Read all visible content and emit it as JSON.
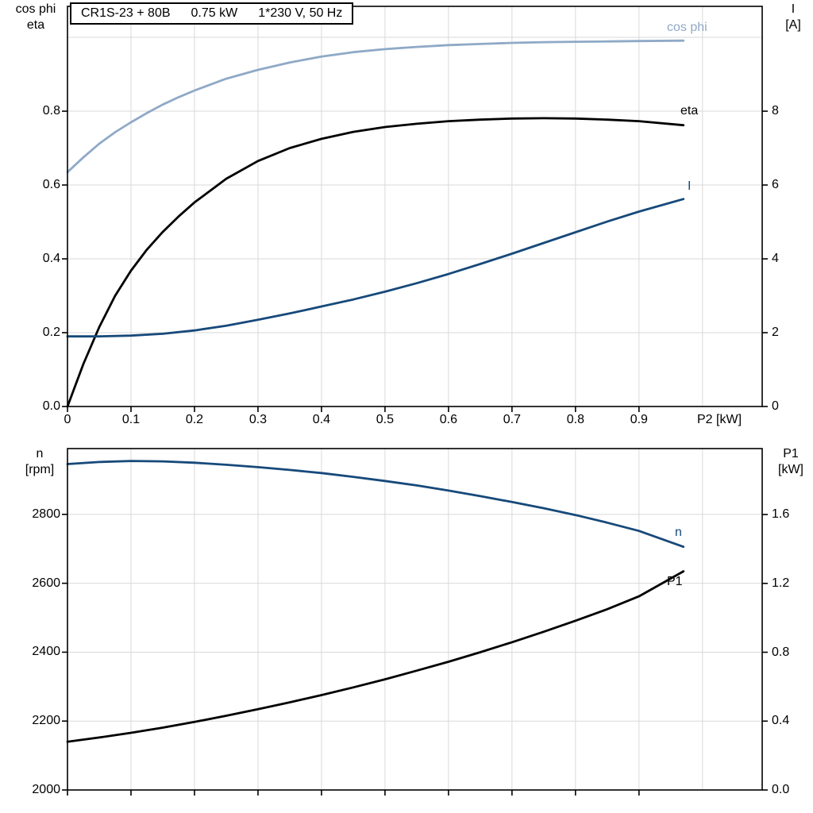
{
  "header": {
    "model": "CR1S-23 + 80B",
    "power": "0.75 kW",
    "supply": "1*230 V, 50 Hz"
  },
  "colors": {
    "light_blue": "#8fa9c7",
    "dark_blue": "#17497a",
    "black": "#000000",
    "grid": "#d9d9d9",
    "frame": "#000000"
  },
  "chart_data": [
    {
      "type": "line",
      "title": "CR1S-23 + 80B 0.75 kW 1*230 V, 50 Hz",
      "xlabel": "P2 [kW]",
      "ylabel_left_lines": [
        "cos phi",
        "eta"
      ],
      "ylabel_right_lines": [
        "I",
        "[A]"
      ],
      "xlim": [
        0,
        1.094
      ],
      "ylim_left": [
        0,
        1.084
      ],
      "ylim_right": [
        0,
        10.84
      ],
      "grid": true,
      "grid_x": [
        0.1,
        0.2,
        0.3,
        0.4,
        0.5,
        0.6,
        0.7,
        0.8,
        0.9,
        1.0
      ],
      "grid_y": [
        0.2,
        0.4,
        0.6,
        0.8,
        1.0
      ],
      "x_ticks": [
        0,
        0.1,
        0.2,
        0.3,
        0.4,
        0.5,
        0.6,
        0.7,
        0.8,
        0.9
      ],
      "x_tick_labels": [
        "0",
        "0.1",
        "0.2",
        "0.3",
        "0.4",
        "0.5",
        "0.6",
        "0.7",
        "0.8",
        "0.9"
      ],
      "y_ticks_left": [
        0,
        0.2,
        0.4,
        0.6,
        0.8
      ],
      "y_tick_labels_left": [
        "0.0",
        "0.2",
        "0.4",
        "0.6",
        "0.8"
      ],
      "y_ticks_right": [
        0,
        2,
        4,
        6,
        8
      ],
      "y_tick_labels_right": [
        "0",
        "2",
        "4",
        "6",
        "8"
      ],
      "series": [
        {
          "id": "cos-phi",
          "name": "cos phi",
          "axis": "left",
          "color": "light_blue",
          "x": [
            0,
            0.025,
            0.05,
            0.075,
            0.1,
            0.125,
            0.15,
            0.175,
            0.2,
            0.25,
            0.3,
            0.35,
            0.4,
            0.45,
            0.5,
            0.55,
            0.6,
            0.65,
            0.7,
            0.75,
            0.8,
            0.85,
            0.9,
            0.97
          ],
          "y": [
            0.635,
            0.675,
            0.712,
            0.743,
            0.77,
            0.795,
            0.818,
            0.838,
            0.856,
            0.888,
            0.912,
            0.932,
            0.948,
            0.96,
            0.968,
            0.974,
            0.979,
            0.982,
            0.985,
            0.987,
            0.988,
            0.989,
            0.99,
            0.991
          ]
        },
        {
          "id": "eta",
          "name": "eta",
          "axis": "left",
          "color": "black",
          "x": [
            0,
            0.025,
            0.05,
            0.075,
            0.1,
            0.125,
            0.15,
            0.175,
            0.2,
            0.25,
            0.3,
            0.35,
            0.4,
            0.45,
            0.5,
            0.55,
            0.6,
            0.65,
            0.7,
            0.75,
            0.8,
            0.85,
            0.9,
            0.97
          ],
          "y": [
            0,
            0.115,
            0.215,
            0.3,
            0.368,
            0.425,
            0.473,
            0.515,
            0.553,
            0.617,
            0.665,
            0.7,
            0.725,
            0.744,
            0.757,
            0.766,
            0.773,
            0.777,
            0.78,
            0.781,
            0.78,
            0.777,
            0.773,
            0.762
          ]
        },
        {
          "id": "current",
          "name": "I",
          "axis": "right",
          "color": "dark_blue",
          "x": [
            0,
            0.05,
            0.1,
            0.15,
            0.2,
            0.25,
            0.3,
            0.35,
            0.4,
            0.45,
            0.5,
            0.55,
            0.6,
            0.65,
            0.7,
            0.75,
            0.8,
            0.85,
            0.9,
            0.97
          ],
          "y": [
            1.9,
            1.9,
            1.92,
            1.97,
            2.06,
            2.19,
            2.35,
            2.52,
            2.71,
            2.9,
            3.11,
            3.34,
            3.59,
            3.86,
            4.14,
            4.43,
            4.72,
            5.01,
            5.28,
            5.62
          ]
        }
      ]
    },
    {
      "type": "line",
      "title": "",
      "xlabel": "",
      "ylabel_left_lines": [
        "n",
        "[rpm]"
      ],
      "ylabel_right_lines": [
        "P1",
        "[kW]"
      ],
      "xlim": [
        0,
        1.094
      ],
      "ylim_left": [
        2000,
        2991
      ],
      "ylim_right": [
        0,
        1.983
      ],
      "grid": true,
      "grid_x": [
        0.1,
        0.2,
        0.3,
        0.4,
        0.5,
        0.6,
        0.7,
        0.8,
        0.9,
        1.0
      ],
      "grid_y": [
        2200,
        2400,
        2600,
        2800
      ],
      "x_ticks": [
        0,
        0.1,
        0.2,
        0.3,
        0.4,
        0.5,
        0.6,
        0.7,
        0.8,
        0.9
      ],
      "x_tick_labels": [],
      "y_ticks_left": [
        2000,
        2200,
        2400,
        2600,
        2800
      ],
      "y_tick_labels_left": [
        "2000",
        "2200",
        "2400",
        "2600",
        "2800"
      ],
      "y_ticks_right": [
        0,
        0.4,
        0.8,
        1.2,
        1.6
      ],
      "y_tick_labels_right": [
        "0.0",
        "0.4",
        "0.8",
        "1.2",
        "1.6"
      ],
      "series": [
        {
          "id": "speed",
          "name": "n",
          "axis": "left",
          "color": "dark_blue",
          "x": [
            0,
            0.05,
            0.1,
            0.15,
            0.2,
            0.25,
            0.3,
            0.35,
            0.4,
            0.45,
            0.5,
            0.55,
            0.6,
            0.65,
            0.7,
            0.75,
            0.8,
            0.85,
            0.9,
            0.97
          ],
          "y": [
            2946,
            2952,
            2955,
            2954,
            2950,
            2944,
            2937,
            2929,
            2920,
            2909,
            2897,
            2884,
            2869,
            2853,
            2836,
            2818,
            2798,
            2776,
            2752,
            2706
          ]
        },
        {
          "id": "p1",
          "name": "P1",
          "axis": "right",
          "color": "black",
          "x": [
            0,
            0.05,
            0.1,
            0.15,
            0.2,
            0.25,
            0.3,
            0.35,
            0.4,
            0.45,
            0.5,
            0.55,
            0.6,
            0.65,
            0.7,
            0.75,
            0.8,
            0.85,
            0.9,
            0.97
          ],
          "y": [
            0.28,
            0.305,
            0.332,
            0.362,
            0.395,
            0.431,
            0.469,
            0.509,
            0.551,
            0.596,
            0.643,
            0.693,
            0.745,
            0.8,
            0.858,
            0.919,
            0.983,
            1.05,
            1.125,
            1.27
          ]
        }
      ]
    }
  ]
}
